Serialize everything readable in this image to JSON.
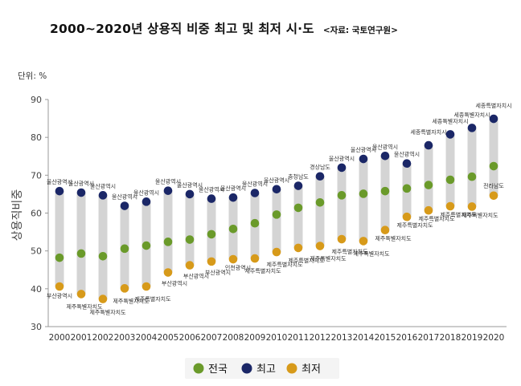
{
  "header": {
    "title": "2000~2020년 상용직 비중 최고 및 최저 시·도",
    "source": "<자료: 국토연구원>"
  },
  "chart_data": {
    "type": "range-dot",
    "title": "2000~2020년 상용직 비중 최고 및 최저 시·도",
    "unit_label": "단위: %",
    "ylabel": "상용직비중",
    "xlabel": "",
    "ylim": [
      30,
      90
    ],
    "yticks": [
      30,
      40,
      50,
      60,
      70,
      80,
      90
    ],
    "categories": [
      "2000",
      "2001",
      "2002",
      "2003",
      "2004",
      "2005",
      "2006",
      "2007",
      "2008",
      "2009",
      "2010",
      "2011",
      "2012",
      "2013",
      "2014",
      "2015",
      "2016",
      "2017",
      "2018",
      "2019",
      "2020"
    ],
    "series": [
      {
        "name": "전국",
        "color": "#6a9a2a",
        "values": [
          48.2,
          49.3,
          48.6,
          50.6,
          51.4,
          52.4,
          53.0,
          54.4,
          55.8,
          57.3,
          59.6,
          61.4,
          62.8,
          64.7,
          65.1,
          65.8,
          66.5,
          67.4,
          68.8,
          69.6,
          72.4
        ]
      },
      {
        "name": "최고",
        "color": "#1b2767",
        "values": [
          65.8,
          65.4,
          64.7,
          61.9,
          63.0,
          65.9,
          65.0,
          63.8,
          64.1,
          65.3,
          66.3,
          67.2,
          69.7,
          72.0,
          74.3,
          75.1,
          73.1,
          77.9,
          80.8,
          82.5,
          84.9
        ],
        "labels": [
          "울산광역시",
          "울산광역시",
          "울산광역시",
          "울산광역시",
          "울산광역시",
          "울산광역시",
          "울산광역시",
          "울산광역시",
          "울산광역시",
          "울산광역시",
          "울산광역시",
          "충청남도",
          "경상남도",
          "울산광역시",
          "울산광역시",
          "울산광역시",
          "울산광역시",
          "세종특별자치시",
          "세종특별자치시",
          "세종특별자치시",
          "세종특별자치시"
        ]
      },
      {
        "name": "최저",
        "color": "#d79a1a",
        "values": [
          40.6,
          38.6,
          37.3,
          40.1,
          40.6,
          44.3,
          46.2,
          47.2,
          47.8,
          48.0,
          49.7,
          50.8,
          51.3,
          53.1,
          52.6,
          55.5,
          59.0,
          60.7,
          61.8,
          61.7,
          64.6
        ],
        "labels": [
          "부산광역시",
          "제주특별자치도",
          "제주특별자치도",
          "제주특별자치도",
          "제주특별자치도",
          "부산광역시",
          "부산광역시",
          "부산광역시",
          "인천광역시",
          "제주특별자치도",
          "제주특별자치도",
          "제주특별자치도",
          "제주특별자치도",
          "제주특별자치도",
          "제주특별자치도",
          "제주특별자치도",
          "제주특별자치도",
          "제주특별자치도",
          "제주특별자치도",
          "제주특별자치도",
          "전라남도"
        ]
      }
    ],
    "legend": [
      "전국",
      "최고",
      "최저"
    ],
    "legend_position": "bottom-center",
    "grid": false
  }
}
